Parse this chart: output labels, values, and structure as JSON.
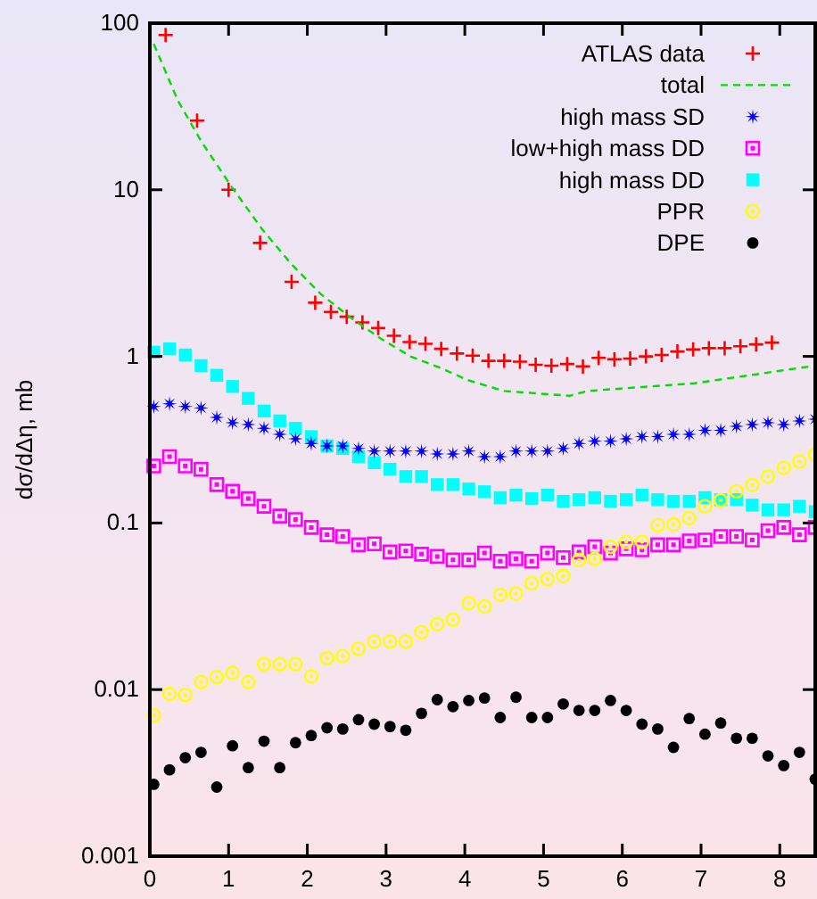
{
  "chart_data": {
    "type": "scatter",
    "ylabel": "dσ/dΔη, mb",
    "log": "y",
    "legend": "top right",
    "xlim": [
      0,
      8.45
    ],
    "ylim": [
      0.001,
      100
    ],
    "xticks": [
      0,
      1,
      2,
      3,
      4,
      5,
      6,
      7,
      8
    ],
    "yticks": [
      0.001,
      0.01,
      0.1,
      1,
      10,
      100
    ],
    "x": [
      0.05,
      0.25,
      0.45,
      0.65,
      0.85,
      1.05,
      1.25,
      1.45,
      1.65,
      1.85,
      2.05,
      2.25,
      2.45,
      2.65,
      2.85,
      3.05,
      3.25,
      3.45,
      3.65,
      3.85,
      4.05,
      4.25,
      4.45,
      4.65,
      4.85,
      5.05,
      5.25,
      5.45,
      5.65,
      5.85,
      6.05,
      6.25,
      6.45,
      6.65,
      6.85,
      7.05,
      7.25,
      7.45,
      7.65,
      7.85,
      8.05,
      8.25,
      8.45
    ],
    "series": [
      {
        "name": "ATLAS data",
        "color": "#ff0000",
        "marker": "cross",
        "x": [
          0.2,
          0.6,
          1.0,
          1.4,
          1.8,
          2.1,
          2.3,
          2.5,
          2.7,
          2.9,
          3.1,
          3.3,
          3.5,
          3.7,
          3.9,
          4.1,
          4.3,
          4.5,
          4.7,
          4.9,
          5.1,
          5.3,
          5.5,
          5.7,
          5.9,
          6.1,
          6.3,
          6.5,
          6.7,
          6.9,
          7.1,
          7.3,
          7.5,
          7.7,
          7.9
        ],
        "values": [
          85,
          26,
          10,
          4.8,
          2.8,
          2.1,
          1.85,
          1.73,
          1.6,
          1.48,
          1.33,
          1.22,
          1.19,
          1.11,
          1.04,
          1.01,
          0.94,
          0.94,
          0.93,
          0.89,
          0.88,
          0.9,
          0.87,
          0.98,
          0.96,
          0.97,
          1.0,
          1.02,
          1.07,
          1.1,
          1.12,
          1.12,
          1.15,
          1.18,
          1.21
        ]
      },
      {
        "name": "total",
        "color": "#00dd00",
        "type": "line",
        "line_style": "dashed",
        "marker": "none",
        "x": [
          0.05,
          0.36,
          0.66,
          1.04,
          1.42,
          1.8,
          2.17,
          2.55,
          2.93,
          3.31,
          3.7,
          4.04,
          4.5,
          5.33,
          5.56,
          6.92,
          8.45
        ],
        "values": [
          75,
          34,
          19.3,
          10.4,
          5.85,
          3.57,
          2.37,
          1.71,
          1.28,
          1.0,
          0.85,
          0.72,
          0.62,
          0.58,
          0.62,
          0.69,
          0.88
        ]
      },
      {
        "name": "high mass SD",
        "color": "#0000ff",
        "marker": "star",
        "values": [
          0.5,
          0.52,
          0.5,
          0.49,
          0.43,
          0.4,
          0.39,
          0.37,
          0.34,
          0.32,
          0.3,
          0.29,
          0.29,
          0.28,
          0.27,
          0.27,
          0.27,
          0.27,
          0.26,
          0.26,
          0.27,
          0.25,
          0.25,
          0.27,
          0.27,
          0.27,
          0.28,
          0.3,
          0.31,
          0.31,
          0.32,
          0.33,
          0.33,
          0.34,
          0.34,
          0.36,
          0.36,
          0.38,
          0.39,
          0.4,
          0.39,
          0.41,
          0.42
        ]
      },
      {
        "name": "low+high mass DD",
        "color": "#ff00ff",
        "marker": "square",
        "values": [
          0.22,
          0.25,
          0.22,
          0.21,
          0.17,
          0.155,
          0.14,
          0.126,
          0.11,
          0.105,
          0.094,
          0.085,
          0.083,
          0.074,
          0.075,
          0.067,
          0.068,
          0.065,
          0.063,
          0.06,
          0.06,
          0.066,
          0.059,
          0.061,
          0.059,
          0.066,
          0.062,
          0.067,
          0.072,
          0.066,
          0.07,
          0.069,
          0.074,
          0.074,
          0.078,
          0.079,
          0.083,
          0.083,
          0.079,
          0.09,
          0.094,
          0.085,
          0.094
        ]
      },
      {
        "name": "high mass DD",
        "color": "#00ffff",
        "marker": "square",
        "values": [
          1.06,
          1.11,
          1.02,
          0.88,
          0.77,
          0.66,
          0.56,
          0.47,
          0.41,
          0.37,
          0.33,
          0.29,
          0.28,
          0.25,
          0.23,
          0.21,
          0.19,
          0.19,
          0.17,
          0.17,
          0.16,
          0.154,
          0.142,
          0.147,
          0.14,
          0.147,
          0.135,
          0.138,
          0.142,
          0.135,
          0.138,
          0.147,
          0.138,
          0.135,
          0.135,
          0.142,
          0.138,
          0.138,
          0.128,
          0.12,
          0.12,
          0.126,
          0.117
        ]
      },
      {
        "name": "PPR",
        "color": "#ffff00",
        "marker": "circle",
        "values": [
          0.007,
          0.0094,
          0.0093,
          0.0111,
          0.0119,
          0.0126,
          0.0111,
          0.0142,
          0.0142,
          0.0142,
          0.012,
          0.0154,
          0.0159,
          0.0176,
          0.0194,
          0.0194,
          0.0194,
          0.0221,
          0.0247,
          0.0263,
          0.033,
          0.0315,
          0.037,
          0.0377,
          0.0434,
          0.046,
          0.048,
          0.06,
          0.061,
          0.072,
          0.077,
          0.077,
          0.097,
          0.098,
          0.107,
          0.126,
          0.137,
          0.155,
          0.169,
          0.19,
          0.214,
          0.234,
          0.257
        ]
      },
      {
        "name": "DPE",
        "color": "#000000",
        "marker": "circle",
        "values": [
          0.0027,
          0.0033,
          0.0039,
          0.0042,
          0.0026,
          0.0046,
          0.0034,
          0.0049,
          0.0034,
          0.0048,
          0.0053,
          0.0059,
          0.0058,
          0.0066,
          0.0062,
          0.006,
          0.0057,
          0.0072,
          0.0087,
          0.0079,
          0.0086,
          0.0089,
          0.0068,
          0.009,
          0.0068,
          0.0068,
          0.0082,
          0.0075,
          0.0075,
          0.0086,
          0.0075,
          0.0062,
          0.0058,
          0.0045,
          0.0067,
          0.0054,
          0.0063,
          0.0051,
          0.0051,
          0.004,
          0.0035,
          0.0042,
          0.0029
        ]
      }
    ]
  }
}
